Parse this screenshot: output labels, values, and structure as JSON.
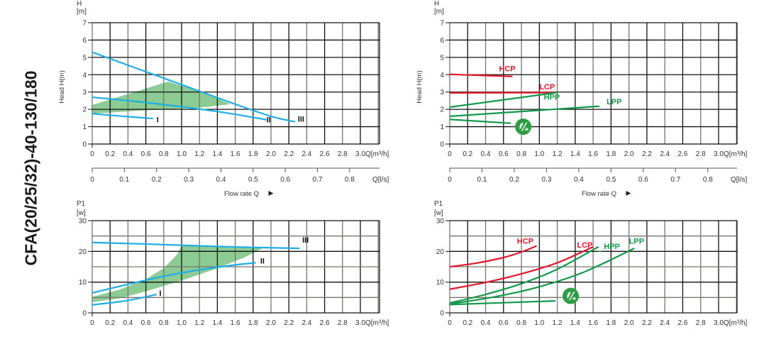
{
  "title": "CFA(20/25/32)-40-130/180",
  "colors": {
    "speed_curve": "#1eaee6",
    "band": "#8dcb94",
    "constant_pressure": "#e3172b",
    "proportional_pressure": "#12994a",
    "eco_badge": "#2e9b45",
    "grid_major": "#111111",
    "grid_minor": "#7a7470"
  },
  "chart_data": [
    {
      "id": "head-speed",
      "type": "line",
      "title": "",
      "ylabel": "Head H(m)",
      "y_unit_label": [
        "H",
        "[m]"
      ],
      "xlabel": "Flow rate Q",
      "x_unit_label": "Q[m³/h]",
      "secondary_x_unit_label": "Q[l/s]",
      "xlim": [
        0,
        3.0
      ],
      "ylim": [
        0,
        7
      ],
      "xticks": [
        "0",
        "0.2",
        "0.4",
        "0.6",
        "0.8",
        "1.0",
        "1.2",
        "1.4",
        "1.6",
        "1.8",
        "2.0",
        "2.2",
        "2.4",
        "2.6",
        "2.8",
        "3.0"
      ],
      "yticks": [
        "0",
        "1",
        "2",
        "3",
        "4",
        "5",
        "6",
        "7"
      ],
      "secondary_xticks": [
        "0",
        "0.1",
        "0.2",
        "0.3",
        "0.4",
        "0.5",
        "0.6",
        "0.7",
        "0.8"
      ],
      "grid": true,
      "band": [
        [
          0,
          2.25
        ],
        [
          0.85,
          3.6
        ],
        [
          1.2,
          3.05
        ],
        [
          1.55,
          2.3
        ],
        [
          1.2,
          2.1
        ],
        [
          0.6,
          1.95
        ],
        [
          0,
          1.75
        ]
      ],
      "series": [
        {
          "name": "I",
          "color_key": "speed_curve",
          "x": [
            0,
            0.3,
            0.68
          ],
          "y": [
            1.75,
            1.62,
            1.47
          ]
        },
        {
          "name": "II",
          "color_key": "speed_curve",
          "x": [
            0,
            0.5,
            1.0,
            1.5,
            1.95
          ],
          "y": [
            2.7,
            2.45,
            2.15,
            1.8,
            1.4
          ]
        },
        {
          "name": "III",
          "color_key": "speed_curve",
          "x": [
            0,
            0.4,
            0.8,
            1.2,
            1.6,
            2.0,
            2.27
          ],
          "y": [
            5.3,
            4.55,
            3.8,
            3.05,
            2.3,
            1.6,
            1.28
          ]
        }
      ]
    },
    {
      "id": "head-modes",
      "type": "line",
      "title": "",
      "ylabel": "Head H(m)",
      "y_unit_label": [
        "H",
        "[m]"
      ],
      "xlabel": "Flow rate Q",
      "x_unit_label": "Q[m³/h]",
      "secondary_x_unit_label": "Q[l/s]",
      "xlim": [
        0,
        3.0
      ],
      "ylim": [
        0,
        7
      ],
      "xticks": [
        "0",
        "0.2",
        "0.4",
        "0.6",
        "0.8",
        "1.0",
        "1.2",
        "1.4",
        "1.6",
        "1.8",
        "2.0",
        "2.2",
        "2.4",
        "2.6",
        "2.8",
        "3.0"
      ],
      "yticks": [
        "0",
        "1",
        "2",
        "3",
        "4",
        "5",
        "6",
        "7"
      ],
      "secondary_xticks": [
        "0",
        "0.1",
        "0.2",
        "0.3",
        "0.4",
        "0.5",
        "0.6",
        "0.7",
        "0.8"
      ],
      "grid": true,
      "series": [
        {
          "name": "HCP",
          "color_key": "constant_pressure",
          "x": [
            0,
            0.7
          ],
          "y": [
            4.02,
            3.9
          ]
        },
        {
          "name": "LCP",
          "color_key": "constant_pressure",
          "x": [
            0,
            1.2
          ],
          "y": [
            2.95,
            2.97
          ]
        },
        {
          "name": "HPP",
          "color_key": "proportional_pressure",
          "x": [
            0,
            1.2
          ],
          "y": [
            2.13,
            2.97
          ]
        },
        {
          "name": "LPP",
          "color_key": "proportional_pressure",
          "x": [
            0,
            1.67
          ],
          "y": [
            1.6,
            2.18
          ]
        },
        {
          "name": "AUTO",
          "color_key": "proportional_pressure",
          "x": [
            0,
            0.68
          ],
          "y": [
            1.42,
            1.2
          ]
        }
      ],
      "annotations": [
        "eco-auto badge"
      ]
    },
    {
      "id": "power-speed",
      "type": "line",
      "title": "",
      "ylabel": "",
      "y_unit_label": [
        "P1",
        "[w]"
      ],
      "xlabel": "",
      "x_unit_label": "Q[m³/h]",
      "xlim": [
        0,
        3.0
      ],
      "ylim": [
        0,
        30
      ],
      "xticks": [
        "0",
        "0.2",
        "0.4",
        "0.6",
        "0.8",
        "1.0",
        "1.2",
        "1.4",
        "1.6",
        "1.8",
        "2.0",
        "2.2",
        "2.4",
        "2.6",
        "2.8",
        "3.0"
      ],
      "yticks": [
        "0",
        "10",
        "20",
        "30"
      ],
      "grid": true,
      "band": [
        [
          0,
          5.2
        ],
        [
          0.3,
          7.5
        ],
        [
          0.6,
          11
        ],
        [
          0.8,
          14.5
        ],
        [
          0.95,
          19
        ],
        [
          1.0,
          22
        ],
        [
          1.3,
          21.8
        ],
        [
          1.6,
          21.5
        ],
        [
          1.92,
          21.2
        ],
        [
          1.7,
          18
        ],
        [
          1.4,
          14.5
        ],
        [
          1.0,
          10.5
        ],
        [
          0.6,
          7
        ],
        [
          0.3,
          4.7
        ],
        [
          0,
          3.5
        ]
      ],
      "series": [
        {
          "name": "I",
          "color_key": "speed_curve",
          "x": [
            0,
            0.3,
            0.5,
            0.72
          ],
          "y": [
            2.6,
            3.6,
            4.6,
            6.0
          ]
        },
        {
          "name": "II",
          "color_key": "speed_curve",
          "x": [
            0,
            0.4,
            0.8,
            1.2,
            1.6,
            1.83
          ],
          "y": [
            6.5,
            9.3,
            11.9,
            14.0,
            15.6,
            16.3
          ]
        },
        {
          "name": "III",
          "color_key": "speed_curve",
          "x": [
            0,
            0.6,
            1.2,
            1.8,
            2.32
          ],
          "y": [
            22.9,
            22.4,
            21.8,
            21.3,
            21.0
          ]
        }
      ]
    },
    {
      "id": "power-modes",
      "type": "line",
      "title": "",
      "ylabel": "",
      "y_unit_label": [
        "P1",
        "[w]"
      ],
      "xlabel": "",
      "x_unit_label": "Q[m³/h]",
      "xlim": [
        0,
        3.0
      ],
      "ylim": [
        0,
        30
      ],
      "xticks": [
        "0",
        "0.2",
        "0.4",
        "0.6",
        "0.8",
        "1.0",
        "1.2",
        "1.4",
        "1.6",
        "1.8",
        "2.0",
        "2.2",
        "2.4",
        "2.6",
        "2.8",
        "3.0"
      ],
      "yticks": [
        "0",
        "10",
        "20",
        "30"
      ],
      "grid": true,
      "series": [
        {
          "name": "HCP",
          "color_key": "constant_pressure",
          "x": [
            0,
            0.3,
            0.6,
            0.8,
            0.97
          ],
          "y": [
            15,
            16.2,
            18,
            19.8,
            21.8
          ]
        },
        {
          "name": "LCP",
          "color_key": "constant_pressure",
          "x": [
            0,
            0.4,
            0.8,
            1.2,
            1.6
          ],
          "y": [
            7.7,
            9.9,
            12.7,
            16.3,
            21.5
          ]
        },
        {
          "name": "HPP",
          "color_key": "proportional_pressure",
          "x": [
            0,
            0.4,
            0.8,
            1.2,
            1.66
          ],
          "y": [
            3.2,
            6.0,
            9.5,
            14.2,
            21.5
          ]
        },
        {
          "name": "LPP",
          "color_key": "proportional_pressure",
          "x": [
            0,
            0.5,
            1.0,
            1.5,
            2.06
          ],
          "y": [
            2.9,
            5.2,
            8.5,
            13.3,
            21.0
          ]
        },
        {
          "name": "AUTO",
          "color_key": "proportional_pressure",
          "x": [
            0,
            0.6,
            1.18
          ],
          "y": [
            2.7,
            3.3,
            3.9
          ]
        }
      ],
      "annotations": [
        "eco-auto badge"
      ]
    }
  ]
}
